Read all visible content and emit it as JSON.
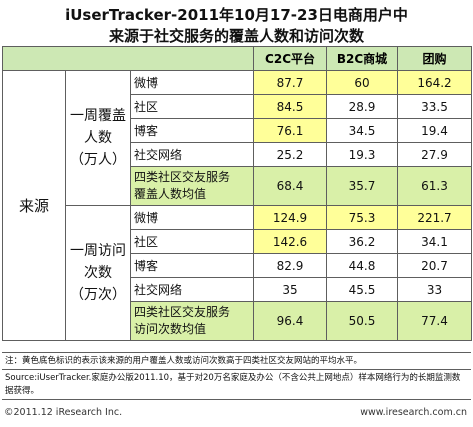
{
  "title_line1": "iUserTracker-2011年10月17-23日电商用户中",
  "title_line2": "来源于社交服务的覆盖人数和访问次数",
  "colors": {
    "header_green": "#cde8b4",
    "highlight_yellow": "#ffff99",
    "average_green": "#d9f0a8",
    "border": "#5e5e5e"
  },
  "chart_data": {
    "type": "table",
    "columns": [
      "C2C平台",
      "B2C商城",
      "团购"
    ],
    "row_group_label": "来源",
    "groups": [
      {
        "label_lines": [
          "一周覆盖",
          "人数",
          "（万人）"
        ],
        "rows": [
          {
            "name": "微博",
            "values": [
              87.7,
              60,
              164.2
            ],
            "highlight": [
              true,
              true,
              true
            ]
          },
          {
            "name": "社区",
            "values": [
              84.5,
              28.9,
              33.5
            ],
            "highlight": [
              true,
              false,
              false
            ]
          },
          {
            "name": "博客",
            "values": [
              76.1,
              34.5,
              19.4
            ],
            "highlight": [
              true,
              false,
              false
            ]
          },
          {
            "name": "社交网络",
            "values": [
              25.2,
              19.3,
              27.9
            ],
            "highlight": [
              false,
              false,
              false
            ]
          }
        ],
        "average": {
          "name_lines": [
            "四类社区交友服务",
            "覆盖人数均值"
          ],
          "values": [
            68.4,
            35.7,
            61.3
          ]
        }
      },
      {
        "label_lines": [
          "一周访问",
          "次数",
          "（万次）"
        ],
        "rows": [
          {
            "name": "微博",
            "values": [
              124.9,
              75.3,
              221.7
            ],
            "highlight": [
              true,
              true,
              true
            ]
          },
          {
            "name": "社区",
            "values": [
              142.6,
              36.2,
              34.1
            ],
            "highlight": [
              true,
              false,
              false
            ]
          },
          {
            "name": "博客",
            "values": [
              82.9,
              44.8,
              20.7
            ],
            "highlight": [
              false,
              false,
              false
            ]
          },
          {
            "name": "社交网络",
            "values": [
              35,
              45.5,
              33
            ],
            "highlight": [
              false,
              false,
              false
            ]
          }
        ],
        "average": {
          "name_lines": [
            "四类社区交友服务",
            "访问次数均值"
          ],
          "values": [
            96.4,
            50.5,
            77.4
          ]
        }
      }
    ]
  },
  "notes": [
    "注：黄色底色标识的表示该来源的用户覆盖人数或访问次数高于四类社区交友网站的平均水平。",
    "Source:iUserTracker.家庭办公版2011.10，基于对20万名家庭及办公（不含公共上网地点）样本网络行为的长期监测数据获得。"
  ],
  "footer": {
    "copyright": "©2011.12 iResearch Inc.",
    "website": "www.iresearch.com.cn"
  }
}
